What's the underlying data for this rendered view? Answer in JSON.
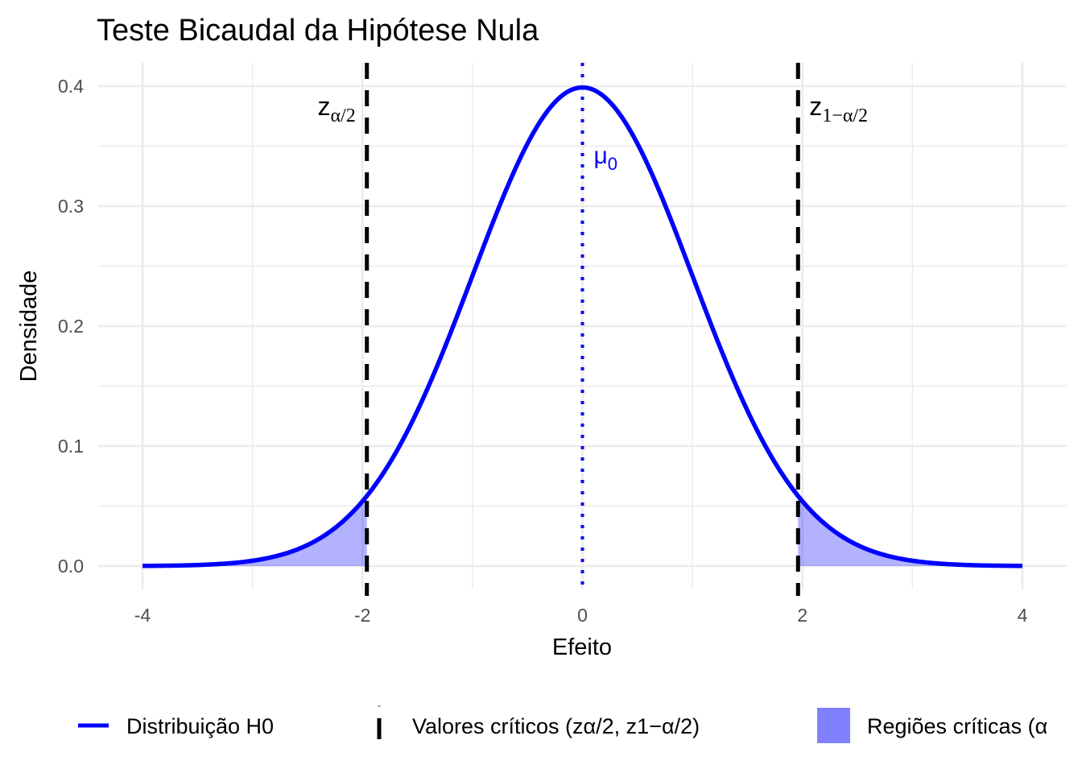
{
  "chart_data": {
    "type": "line",
    "title": "Teste Bicaudal da Hipótese Nula",
    "xlabel": "Efeito",
    "ylabel": "Densidade",
    "xlim": [
      -4,
      4
    ],
    "ylim": [
      0,
      0.4
    ],
    "x_ticks": [
      "-4",
      "-2",
      "0",
      "2",
      "4"
    ],
    "y_ticks": [
      "0.0",
      "0.1",
      "0.2",
      "0.3",
      "0.4"
    ],
    "grid": true,
    "series": [
      {
        "name": "Distribuição H0",
        "kind": "normal_density",
        "mean": 0,
        "sd": 1,
        "color": "#0000FF",
        "x": [
          -4,
          -3.5,
          -3,
          -2.5,
          -2,
          -1.96,
          -1.5,
          -1,
          -0.5,
          0,
          0.5,
          1,
          1.5,
          1.96,
          2,
          2.5,
          3,
          3.5,
          4
        ],
        "y": [
          0.0001,
          0.0009,
          0.0044,
          0.0175,
          0.054,
          0.0584,
          0.1295,
          0.242,
          0.3521,
          0.3989,
          0.3521,
          0.242,
          0.1295,
          0.0584,
          0.054,
          0.0175,
          0.0044,
          0.0009,
          0.0001
        ]
      }
    ],
    "critical_values": {
      "lower": -1.96,
      "upper": 1.96,
      "style": "dashed",
      "color": "#000000"
    },
    "critical_regions": [
      {
        "from": -4,
        "to": -1.96,
        "color": "#0000FF",
        "alpha": 0.3
      },
      {
        "from": 1.96,
        "to": 4,
        "color": "#0000FF",
        "alpha": 0.3
      }
    ],
    "mean_line": {
      "x": 0,
      "style": "dotted",
      "color": "#0000FF"
    },
    "annotations": [
      {
        "text": "z",
        "subscript": "α/2",
        "x": -2.1,
        "y": 0.38,
        "color": "#000000"
      },
      {
        "text": "z",
        "subscript": "1−α/2",
        "x": 2.1,
        "y": 0.38,
        "color": "#000000"
      },
      {
        "text": "μ",
        "subscript": "0",
        "x": 0.25,
        "y": 0.34,
        "color": "#0000FF"
      }
    ],
    "legend": {
      "position": "bottom",
      "entries": [
        {
          "label": "Distribuição H0",
          "kind": "line",
          "color": "#0000FF"
        },
        {
          "label": "Valores críticos (zα/2, z1−α/2)",
          "kind": "dashed-line",
          "color": "#000000"
        },
        {
          "label": "Regiões críticas (α",
          "kind": "fill",
          "color": "#8080FF"
        }
      ]
    }
  },
  "colors": {
    "curve": "#0000FF",
    "fill": "#0000FF",
    "legend_fill": "#8080FF",
    "grid": "#EBEBEB",
    "tick_text": "#4D4D4D"
  }
}
